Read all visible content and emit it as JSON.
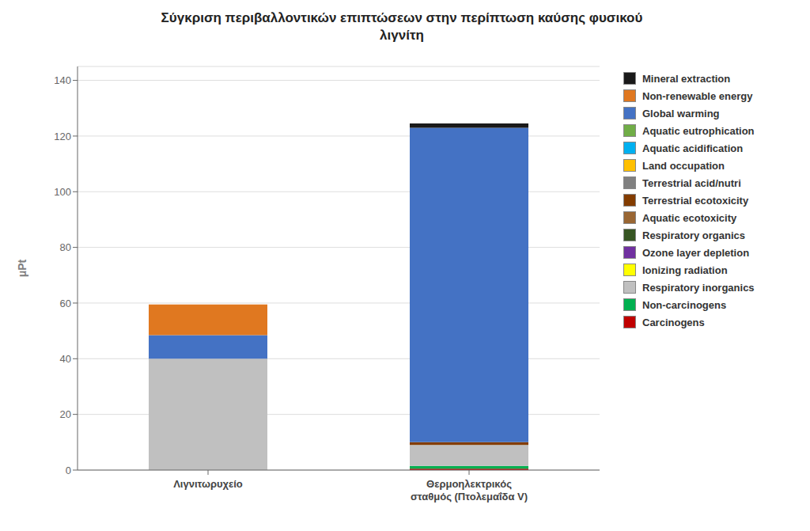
{
  "chart_data": {
    "type": "bar",
    "title": "Σύγκριση περιβαλλοντικών επιπτώσεων στην περίπτωση καύσης φυσικού\nλιγνίτη",
    "ylabel": "μPt",
    "categories": [
      "Λιγνιτωρυχείο",
      "Θερμοηλεκτρικός\nσταθμός (Πτολεμαΐδα V)"
    ],
    "stacked": true,
    "grid": true,
    "legend": "right",
    "ylim": [
      0,
      145
    ],
    "yticks": [
      0,
      20,
      40,
      60,
      80,
      100,
      120,
      140
    ],
    "series": [
      {
        "name": "Carcinogens",
        "color": "#c00000",
        "values": [
          0.0,
          0.5
        ]
      },
      {
        "name": "Non-carcinogens",
        "color": "#00b050",
        "values": [
          0.0,
          1.0
        ]
      },
      {
        "name": "Respiratory inorganics",
        "color": "#c0c0c0",
        "values": [
          40.0,
          7.5
        ]
      },
      {
        "name": "Ionizing radiation",
        "color": "#ffff00",
        "values": [
          0.0,
          0.0
        ]
      },
      {
        "name": "Ozone layer depletion",
        "color": "#7030a0",
        "values": [
          0.0,
          0.0
        ]
      },
      {
        "name": "Respiratory organics",
        "color": "#375623",
        "values": [
          0.0,
          0.0
        ]
      },
      {
        "name": "Aquatic ecotoxicity",
        "color": "#996633",
        "values": [
          0.0,
          0.0
        ]
      },
      {
        "name": "Terrestrial ecotoxicity",
        "color": "#833c00",
        "values": [
          0.0,
          1.0
        ]
      },
      {
        "name": "Terrestrial acid/nutri",
        "color": "#808080",
        "values": [
          0.0,
          0.0
        ]
      },
      {
        "name": "Land occupation",
        "color": "#ffc000",
        "values": [
          0.0,
          0.0
        ]
      },
      {
        "name": "Aquatic acidification",
        "color": "#00b0f0",
        "values": [
          0.0,
          0.0
        ]
      },
      {
        "name": "Aquatic eutrophication",
        "color": "#70ad47",
        "values": [
          0.0,
          0.0
        ]
      },
      {
        "name": "Global warming",
        "color": "#4472c4",
        "values": [
          8.5,
          113.0
        ]
      },
      {
        "name": "Non-renewable energy",
        "color": "#e07820",
        "values": [
          11.0,
          0.0
        ]
      },
      {
        "name": "Mineral extraction",
        "color": "#1a1a1a",
        "values": [
          0.0,
          1.5
        ]
      }
    ]
  }
}
